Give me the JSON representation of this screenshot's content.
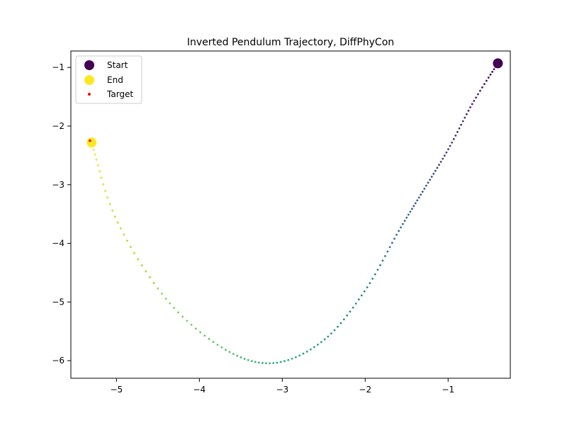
{
  "chart_data": {
    "type": "scatter",
    "title": "Inverted Pendulum Trajectory, DiffPhyCon",
    "xlabel": "",
    "ylabel": "",
    "xlim": [
      -5.55,
      -0.25
    ],
    "ylim": [
      -6.3,
      -0.72
    ],
    "xticks": [
      -5,
      -4,
      -3,
      -2,
      -1
    ],
    "yticks": [
      -1,
      -2,
      -3,
      -4,
      -5,
      -6
    ],
    "xtick_labels": [
      "−5",
      "−4",
      "−3",
      "−2",
      "−1"
    ],
    "ytick_labels": [
      "−1",
      "−2",
      "−3",
      "−4",
      "−5",
      "−6"
    ],
    "grid": false,
    "legend_position": "upper-left",
    "colormap": "viridis",
    "series": [
      {
        "name": "Start",
        "marker": "circle-large",
        "color": "#440154",
        "points": [
          {
            "x": -0.4,
            "y": -0.93
          }
        ]
      },
      {
        "name": "End",
        "marker": "circle-large",
        "color": "#fde725",
        "points": [
          {
            "x": -5.3,
            "y": -2.28
          }
        ]
      },
      {
        "name": "Target",
        "marker": "dot-small",
        "color": "#ff0000",
        "points": [
          {
            "x": -5.32,
            "y": -2.25
          }
        ]
      }
    ],
    "trajectory": {
      "marker": "dot-tiny",
      "num_points": 150,
      "color_start": "#440154",
      "color_end": "#fde725",
      "anchors": [
        {
          "x": -0.4,
          "y": -0.93
        },
        {
          "x": -0.7,
          "y": -1.6
        },
        {
          "x": -1.0,
          "y": -2.4
        },
        {
          "x": -1.3,
          "y": -3.1
        },
        {
          "x": -1.6,
          "y": -3.8
        },
        {
          "x": -2.0,
          "y": -4.8
        },
        {
          "x": -2.5,
          "y": -5.65
        },
        {
          "x": -3.1,
          "y": -6.04
        },
        {
          "x": -3.7,
          "y": -5.8
        },
        {
          "x": -4.4,
          "y": -4.95
        },
        {
          "x": -5.0,
          "y": -3.6
        },
        {
          "x": -5.3,
          "y": -2.28
        }
      ]
    }
  },
  "legend": {
    "start_label": "Start",
    "end_label": "End",
    "target_label": "Target"
  }
}
